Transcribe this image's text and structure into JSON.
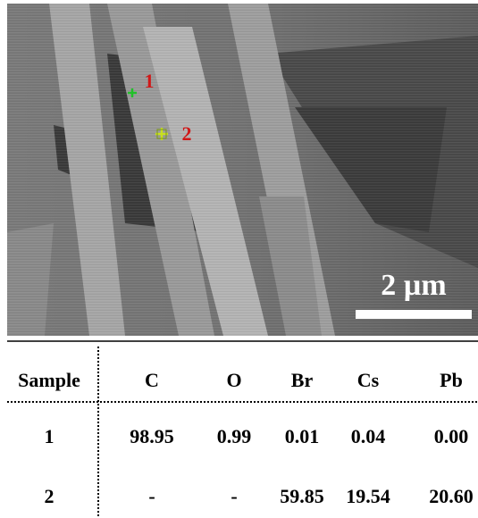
{
  "image": {
    "markers": [
      {
        "label": "1"
      },
      {
        "label": "2"
      }
    ],
    "scale_bar": "2 µm"
  },
  "table": {
    "header": [
      "Sample",
      "C",
      "O",
      "Br",
      "Cs",
      "Pb"
    ],
    "rows": [
      [
        "1",
        "98.95",
        "0.99",
        "0.01",
        "0.04",
        "0.00"
      ],
      [
        "2",
        "-",
        "-",
        "59.85",
        "19.54",
        "20.60"
      ]
    ]
  }
}
